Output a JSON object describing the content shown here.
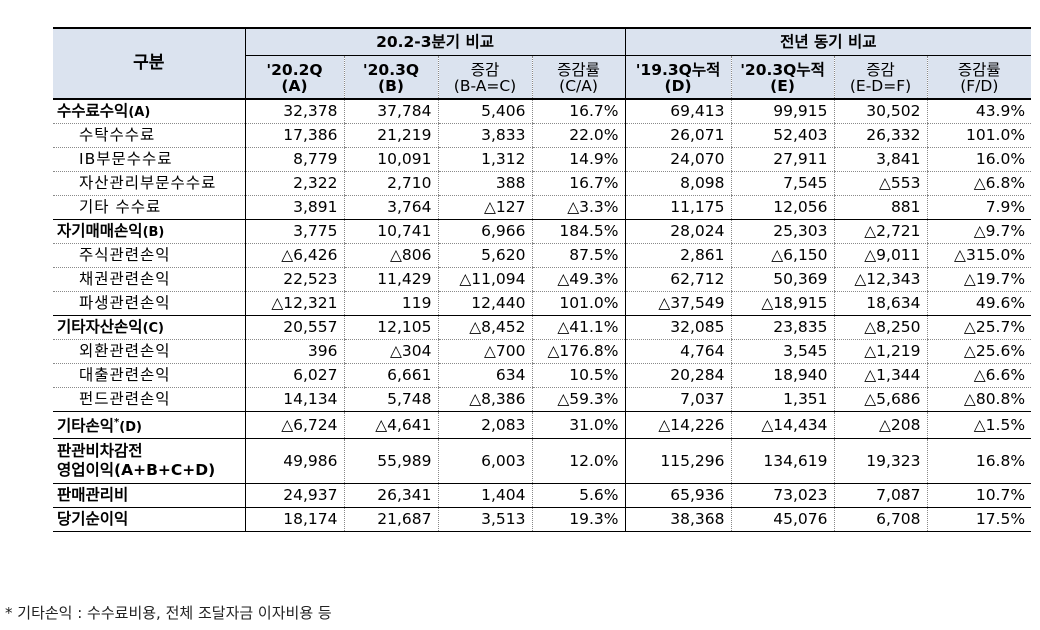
{
  "header": {
    "gubun": "구분",
    "group1": "20.2-3분기 비교",
    "group2": "전년 동기 비교",
    "cols": [
      {
        "l1": "'20.2Q",
        "l2": "(A)"
      },
      {
        "l1": "'20.3Q",
        "l2": "(B)"
      },
      {
        "l1": "증감",
        "l2": "(B-A=C)"
      },
      {
        "l1": "증감률",
        "l2": "(C/A)"
      },
      {
        "l1": "'19.3Q누적",
        "l2": "(D)"
      },
      {
        "l1": "'20.3Q누적",
        "l2": "(E)"
      },
      {
        "l1": "증감",
        "l2": "(E-D=F)"
      },
      {
        "l1": "증감률",
        "l2": "(F/D)"
      }
    ]
  },
  "rows": [
    {
      "label": "수수료수익",
      "tag": "(A)",
      "type": "main",
      "v": [
        "32,378",
        "37,784",
        "5,406",
        "16.7%",
        "69,413",
        "99,915",
        "30,502",
        "43.9%"
      ]
    },
    {
      "label": "수탁수수료",
      "type": "item",
      "v": [
        "17,386",
        "21,219",
        "3,833",
        "22.0%",
        "26,071",
        "52,403",
        "26,332",
        "101.0%"
      ]
    },
    {
      "label": "IB부문수수료",
      "type": "item",
      "v": [
        "8,779",
        "10,091",
        "1,312",
        "14.9%",
        "24,070",
        "27,911",
        "3,841",
        "16.0%"
      ]
    },
    {
      "label": "자산관리부문수수료",
      "type": "item",
      "v": [
        "2,322",
        "2,710",
        "388",
        "16.7%",
        "8,098",
        "7,545",
        "△553",
        "△6.8%"
      ]
    },
    {
      "label": "기타 수수료",
      "type": "item",
      "v": [
        "3,891",
        "3,764",
        "△127",
        "△3.3%",
        "11,175",
        "12,056",
        "881",
        "7.9%"
      ]
    },
    {
      "label": "자기매매손익",
      "tag": "(B)",
      "type": "main",
      "v": [
        "3,775",
        "10,741",
        "6,966",
        "184.5%",
        "28,024",
        "25,303",
        "△2,721",
        "△9.7%"
      ]
    },
    {
      "label": "주식관련손익",
      "type": "item",
      "v": [
        "△6,426",
        "△806",
        "5,620",
        "87.5%",
        "2,861",
        "△6,150",
        "△9,011",
        "△315.0%"
      ]
    },
    {
      "label": "채권관련손익",
      "type": "item",
      "v": [
        "22,523",
        "11,429",
        "△11,094",
        "△49.3%",
        "62,712",
        "50,369",
        "△12,343",
        "△19.7%"
      ]
    },
    {
      "label": "파생관련손익",
      "type": "item",
      "v": [
        "△12,321",
        "119",
        "12,440",
        "101.0%",
        "△37,549",
        "△18,915",
        "18,634",
        "49.6%"
      ]
    },
    {
      "label": "기타자산손익",
      "tag": "(C)",
      "type": "main",
      "v": [
        "20,557",
        "12,105",
        "△8,452",
        "△41.1%",
        "32,085",
        "23,835",
        "△8,250",
        "△25.7%"
      ]
    },
    {
      "label": "외환관련손익",
      "type": "item",
      "v": [
        "396",
        "△304",
        "△700",
        "△176.8%",
        "4,764",
        "3,545",
        "△1,219",
        "△25.6%"
      ]
    },
    {
      "label": "대출관련손익",
      "type": "item",
      "v": [
        "6,027",
        "6,661",
        "634",
        "10.5%",
        "20,284",
        "18,940",
        "△1,344",
        "△6.6%"
      ]
    },
    {
      "label": "펀드관련손익",
      "type": "item",
      "v": [
        "14,134",
        "5,748",
        "△8,386",
        "△59.3%",
        "7,037",
        "1,351",
        "△5,686",
        "△80.8%"
      ]
    },
    {
      "label": "기타손익",
      "sup": "*",
      "tag": "(D)",
      "type": "main",
      "v": [
        "△6,724",
        "△4,641",
        "2,083",
        "31.0%",
        "△14,226",
        "△14,434",
        "△208",
        "△1.5%"
      ]
    },
    {
      "label": "판관비차감전",
      "label2": "영업이익(A+B+C+D)",
      "type": "main2",
      "v": [
        "49,986",
        "55,989",
        "6,003",
        "12.0%",
        "115,296",
        "134,619",
        "19,323",
        "16.8%"
      ]
    },
    {
      "label": "판매관리비",
      "type": "main",
      "v": [
        "24,937",
        "26,341",
        "1,404",
        "5.6%",
        "65,936",
        "73,023",
        "7,087",
        "10.7%"
      ]
    },
    {
      "label": "당기순이익",
      "type": "main",
      "v": [
        "18,174",
        "21,687",
        "3,513",
        "19.3%",
        "38,368",
        "45,076",
        "6,708",
        "17.5%"
      ]
    }
  ],
  "footnote": "* 기타손익 : 수수료비용, 전체 조달자금 이자비용 등"
}
